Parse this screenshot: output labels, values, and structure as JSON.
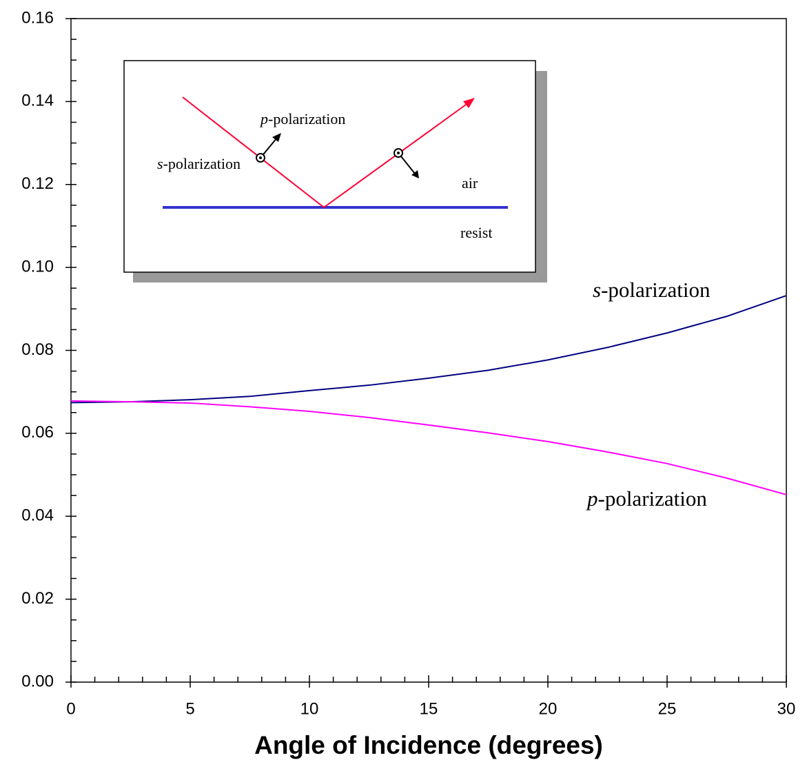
{
  "chart_data": {
    "type": "line",
    "xlabel": "Angle of Incidence (degrees)",
    "x": [
      0,
      2.5,
      5,
      7.5,
      10,
      12.5,
      15,
      17.5,
      20,
      22.5,
      25,
      27.5,
      30
    ],
    "series": [
      {
        "name": "s-polarization",
        "color": "#000080",
        "values": [
          0.0674,
          0.0676,
          0.0681,
          0.0689,
          0.0703,
          0.0716,
          0.0733,
          0.0752,
          0.0777,
          0.0807,
          0.0842,
          0.0882,
          0.0932
        ]
      },
      {
        "name": "p-polarization",
        "color": "#ff00ff",
        "values": [
          0.0678,
          0.0676,
          0.0673,
          0.0664,
          0.0653,
          0.0638,
          0.062,
          0.0601,
          0.058,
          0.0555,
          0.0527,
          0.0492,
          0.0452
        ]
      }
    ],
    "xlim": [
      0,
      30
    ],
    "xticks": [
      0,
      5,
      10,
      15,
      20,
      25,
      30
    ],
    "ylim": [
      0,
      0.16
    ],
    "yticks": [
      {
        "value": 0,
        "label": "0.00"
      },
      0.02,
      0.04,
      0.06,
      0.08,
      {
        "value": 0.1,
        "label": "0.10"
      },
      0.12,
      0.14,
      0.16
    ],
    "grid": false,
    "inset_labels": [
      "p-polarization",
      "s-polarization",
      "air",
      "resist"
    ]
  }
}
